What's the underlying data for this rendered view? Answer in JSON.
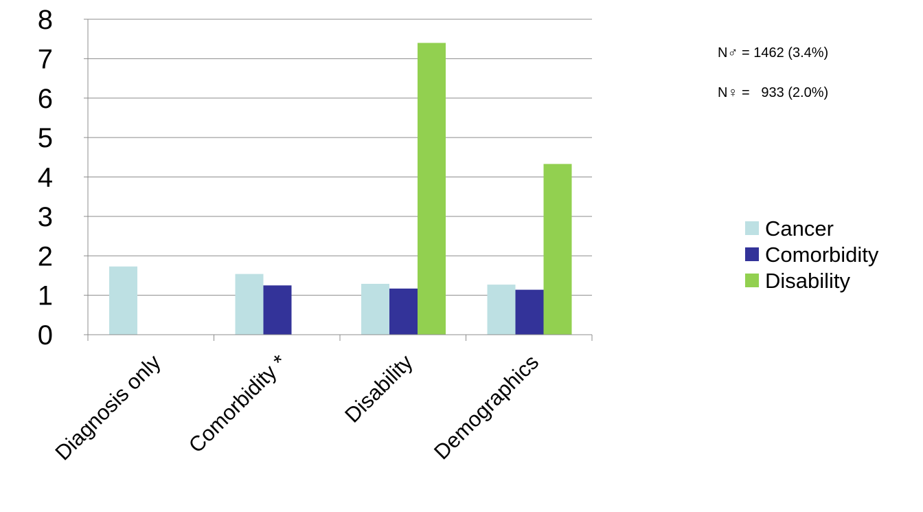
{
  "annotations": {
    "n_male": "N♂ = 1462 (3.4%)",
    "n_female": "N♀ =   933 (2.0%)"
  },
  "legend": {
    "items": [
      {
        "label": "Cancer",
        "color": "#bde0e3"
      },
      {
        "label": "Comorbidity",
        "color": "#333399"
      },
      {
        "label": "Disability",
        "color": "#92d050"
      }
    ]
  },
  "chart_data": {
    "type": "bar",
    "categories": [
      "Diagnosis only",
      "Comorbidity *",
      "Disability",
      "Demographics"
    ],
    "series": [
      {
        "name": "Cancer",
        "color": "#bde0e3",
        "values": [
          1.73,
          1.54,
          1.29,
          1.27
        ]
      },
      {
        "name": "Comorbidity",
        "color": "#333399",
        "values": [
          null,
          1.25,
          1.17,
          1.14
        ]
      },
      {
        "name": "Disability",
        "color": "#92d050",
        "values": [
          null,
          null,
          7.4,
          4.33
        ]
      }
    ],
    "yticks": [
      "0",
      "1",
      "2",
      "3",
      "4",
      "5",
      "6",
      "7",
      "8"
    ],
    "ylim": [
      0,
      8
    ],
    "grid": true,
    "legend_position": "right"
  }
}
